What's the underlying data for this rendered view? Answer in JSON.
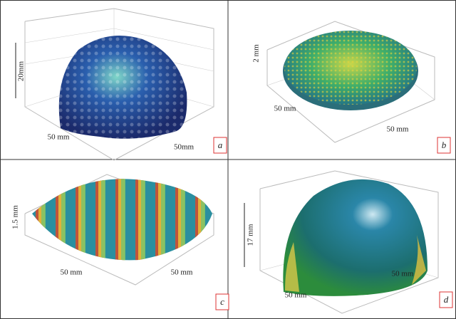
{
  "panels": [
    {
      "label": "a",
      "height_label": "20mm",
      "x_label": "50 mm",
      "y_label": "50mm"
    },
    {
      "label": "b",
      "height_label": "2 mm",
      "x_label": "50 mm",
      "y_label": "50 mm"
    },
    {
      "label": "c",
      "height_label": "1.5 mm",
      "x_label": "50 mm",
      "y_label": "50 mm"
    },
    {
      "label": "d",
      "height_label": "17 mm",
      "x_label": "50 mm",
      "y_label": "50 mm"
    }
  ]
}
